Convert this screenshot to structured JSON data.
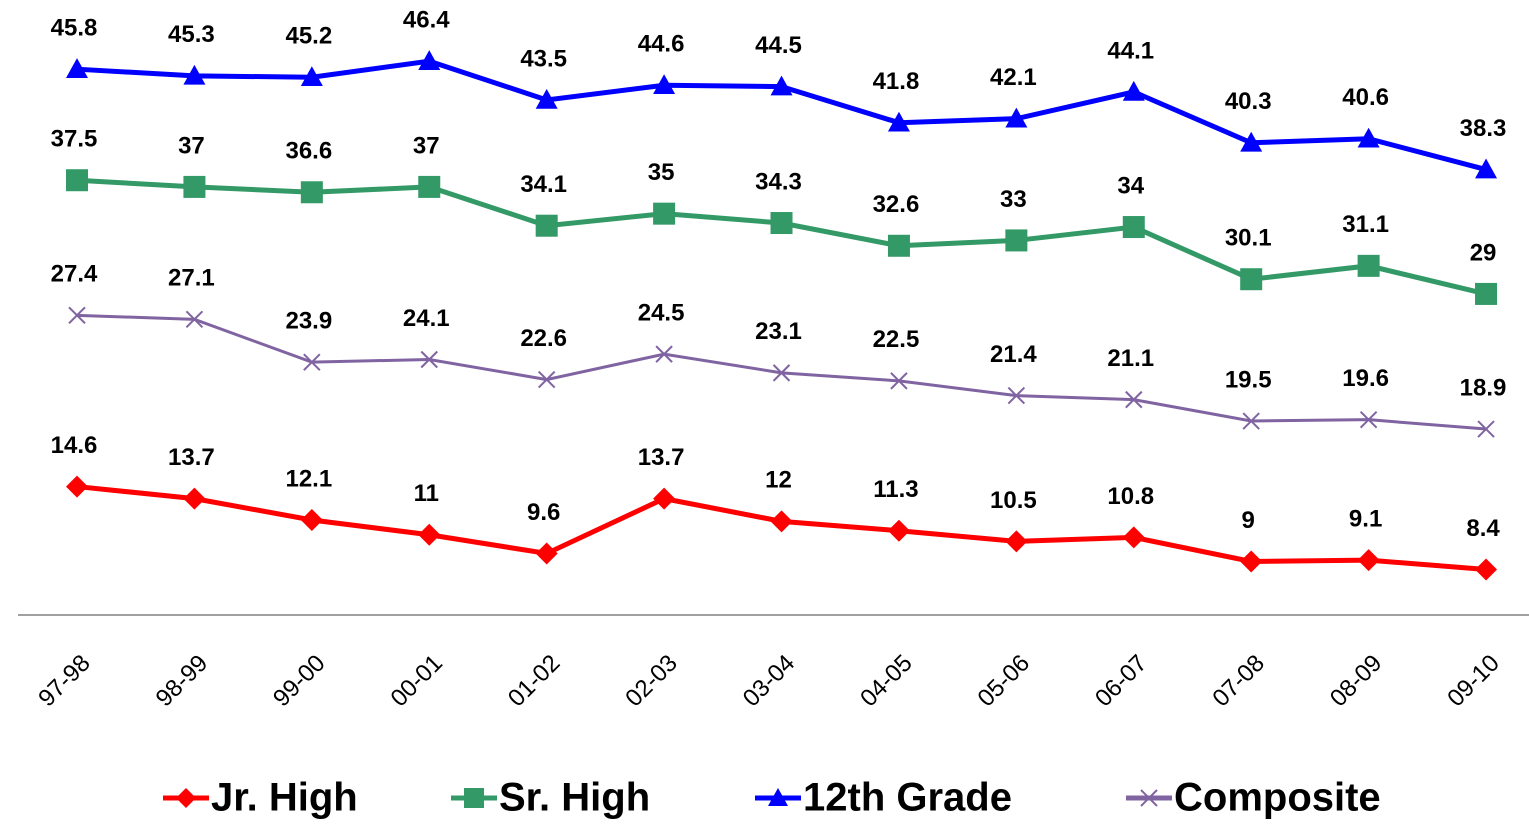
{
  "chart_data": {
    "type": "line",
    "categories": [
      "97-98",
      "98-99",
      "99-00",
      "00-01",
      "01-02",
      "02-03",
      "03-04",
      "04-05",
      "05-06",
      "06-07",
      "07-08",
      "08-09",
      "09-10"
    ],
    "series": [
      {
        "name": "Jr. High",
        "color": "#ff0000",
        "marker": "diamond",
        "values": [
          14.6,
          13.7,
          12.1,
          11,
          9.6,
          13.7,
          12,
          11.3,
          10.5,
          10.8,
          9,
          9.1,
          8.4
        ]
      },
      {
        "name": "Sr. High",
        "color": "#339966",
        "marker": "square",
        "values": [
          37.5,
          37,
          36.6,
          37,
          34.1,
          35,
          34.3,
          32.6,
          33,
          34,
          30.1,
          31.1,
          29
        ]
      },
      {
        "name": "12th Grade",
        "color": "#0000ff",
        "marker": "triangle",
        "values": [
          45.8,
          45.3,
          45.2,
          46.4,
          43.5,
          44.6,
          44.5,
          41.8,
          42.1,
          44.1,
          40.3,
          40.6,
          38.3
        ]
      },
      {
        "name": "Composite",
        "color": "#8064a2",
        "marker": "x",
        "values": [
          27.4,
          27.1,
          23.9,
          24.1,
          22.6,
          24.5,
          23.1,
          22.5,
          21.4,
          21.1,
          19.5,
          19.6,
          18.9
        ]
      }
    ],
    "ylim": [
      5,
      50
    ],
    "legend": "bottom"
  }
}
